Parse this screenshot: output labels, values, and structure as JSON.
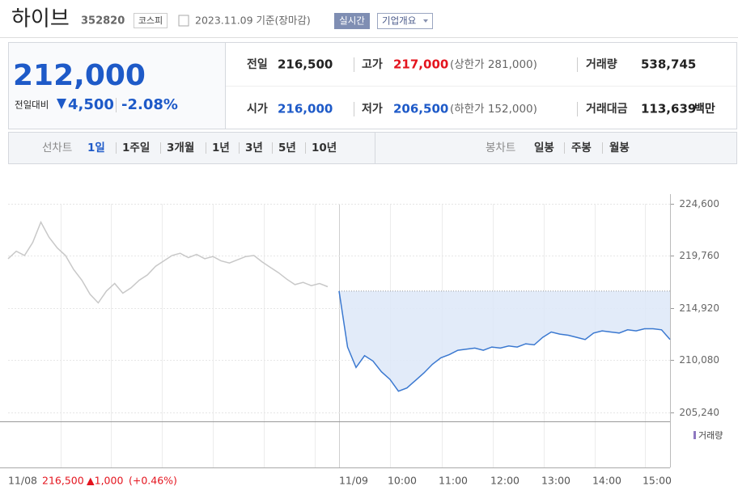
{
  "header": {
    "name": "하이브",
    "code": "352820",
    "market": "코스피",
    "date": "2023.11.09 기준(장마감)",
    "realtime": "실시간",
    "company_info": "기업개요"
  },
  "price": {
    "current": "212,000",
    "change_label": "전일대비",
    "change": "4,500",
    "change_rate": "-2.08%"
  },
  "info": [
    {
      "label": "전일",
      "value": "216,500"
    },
    {
      "label": "고가",
      "value": "217,000",
      "note": "(상한가 281,000)"
    },
    {
      "label": "거래량",
      "value": "538,745"
    },
    {
      "label": "시가",
      "value": "216,000"
    },
    {
      "label": "저가",
      "value": "206,500",
      "note": "(하한가 152,000)"
    },
    {
      "label": "거래대금",
      "value": "113,639",
      "unit": "백만"
    }
  ],
  "tabs": {
    "line_label": "선차트",
    "line": [
      "1일",
      "1주일",
      "3개월",
      "1년",
      "3년",
      "5년",
      "10년"
    ],
    "candle_label": "봉차트",
    "candle": [
      "일봉",
      "주봉",
      "월봉"
    ]
  },
  "chart_data": {
    "type": "line",
    "ylim": [
      204400,
      225500
    ],
    "yticks": [
      {
        "value": 224600,
        "label": "224,600"
      },
      {
        "value": 219760,
        "label": "219,760"
      },
      {
        "value": 214920,
        "label": "214,920"
      },
      {
        "value": 210080,
        "label": "210,080"
      },
      {
        "value": 205240,
        "label": "205,240"
      }
    ],
    "reference": 216500,
    "xlabels": [
      "11/08",
      "11/09",
      "10:00",
      "11:00",
      "12:00",
      "13:00",
      "14:00",
      "15:00"
    ],
    "series": [
      {
        "color": "#c8c8c8",
        "values": [
          219500,
          220200,
          219800,
          221000,
          222900,
          221500,
          220500,
          219800,
          218500,
          217500,
          216200,
          215400,
          216500,
          217200,
          216300,
          216800,
          217500,
          218000,
          218800,
          219300,
          219800,
          220000,
          219600,
          219900,
          219500,
          219700,
          219300,
          219100,
          219400,
          219700,
          219800,
          219200,
          218700,
          218200,
          217600,
          217100,
          217300,
          217000,
          217200,
          216900
        ]
      },
      {
        "color": "#3a78d0",
        "values": [
          216500,
          211300,
          209400,
          210500,
          210000,
          209000,
          208300,
          207200,
          207500,
          208200,
          208900,
          209700,
          210300,
          210600,
          211000,
          211100,
          211200,
          211000,
          211300,
          211200,
          211400,
          211300,
          211600,
          211500,
          212200,
          212700,
          212500,
          212400,
          212200,
          212000,
          212600,
          212800,
          212700,
          212600,
          212900,
          212800,
          213000,
          213000,
          212900,
          212000
        ]
      }
    ],
    "volume_label": "거래량",
    "footer": {
      "close": "216,500",
      "change": "▲1,000",
      "rate": "(+0.46%)"
    }
  }
}
